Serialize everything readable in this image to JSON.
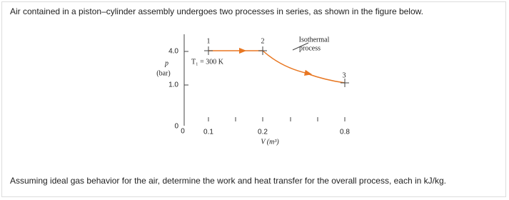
{
  "intro": "Air contained in a piston–cylinder assembly undergoes two processes in series, as shown in the figure below.",
  "figure": {
    "y_axis_label": "p",
    "y_axis_unit": "(bar)",
    "y_ticks": [
      "4.0",
      "1.0"
    ],
    "origin": [
      "0",
      "0"
    ],
    "x_ticks": [
      "0.1",
      "0.2",
      "0.8"
    ],
    "x_axis_label": "V (m³)",
    "states": [
      "1",
      "2",
      "3"
    ],
    "temperature": "T₁ = 300 K",
    "process": [
      "Isothermal",
      "process"
    ]
  },
  "question": "Assuming ideal gas behavior for the air, determine the work and heat transfer for the overall process, each in kJ/kg."
}
